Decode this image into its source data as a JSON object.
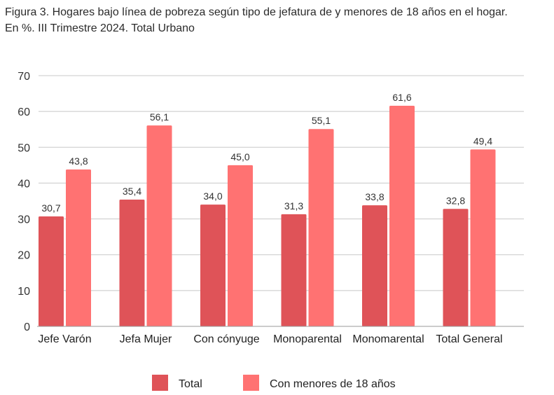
{
  "chart_data": {
    "type": "bar",
    "title": "Figura 3. Hogares bajo línea de pobreza según tipo de jefatura de y menores de 18 años en el hogar.",
    "subtitle": "En %. III Trimestre 2024. Total Urbano",
    "categories": [
      "Jefe Varón",
      "Jefa Mujer",
      "Con cónyuge",
      "Monoparental",
      "Monomarental",
      "Total General"
    ],
    "series": [
      {
        "name": "Total",
        "color": "#df5358",
        "values": [
          30.7,
          35.4,
          34.0,
          31.3,
          33.8,
          32.8
        ],
        "labels": [
          "30,7",
          "35,4",
          "34,0",
          "31,3",
          "33,8",
          "32,8"
        ]
      },
      {
        "name": "Con menores de 18 años",
        "color": "#ff7272",
        "values": [
          43.8,
          56.1,
          45.0,
          55.1,
          61.6,
          49.4
        ],
        "labels": [
          "43,8",
          "56,1",
          "45,0",
          "55,1",
          "61,6",
          "49,4"
        ]
      }
    ],
    "ylim": [
      0,
      70
    ],
    "yticks": [
      0,
      10,
      20,
      30,
      40,
      50,
      60,
      70
    ],
    "grid": true,
    "legend": "bottom"
  }
}
